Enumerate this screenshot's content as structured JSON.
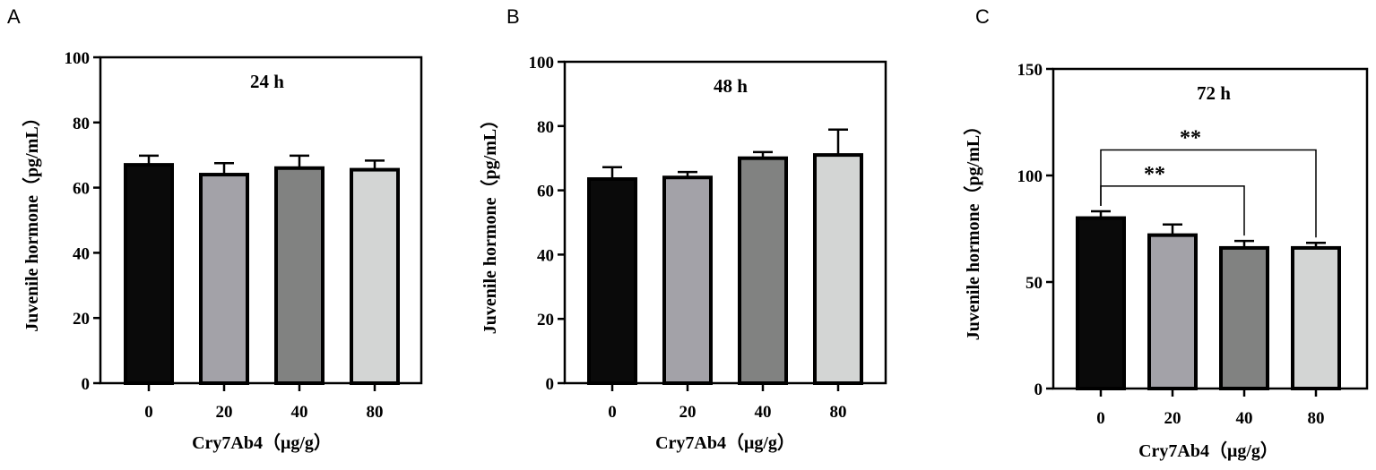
{
  "chart_data": [
    {
      "panel_label": "A",
      "type": "bar",
      "title": "24 h",
      "xlabel": "Cry7Ab4（μg/g）",
      "ylabel": "Juvenile hormone（pg/mL）",
      "categories": [
        "0",
        "20",
        "40",
        "80"
      ],
      "values": [
        67,
        64,
        66,
        65.5
      ],
      "errors": [
        2.8,
        3.5,
        3.8,
        2.8
      ],
      "bar_colors": [
        "#0a0a0a",
        "#a3a2a8",
        "#818281",
        "#d3d5d4"
      ],
      "ylim": [
        0,
        100
      ],
      "yticks": [
        0,
        20,
        40,
        60,
        80,
        100
      ],
      "significance": []
    },
    {
      "panel_label": "B",
      "type": "bar",
      "title": "48 h",
      "xlabel": "Cry7Ab4（μg/g）",
      "ylabel": "Juvenile hormone（pg/mL）",
      "categories": [
        "0",
        "20",
        "40",
        "80"
      ],
      "values": [
        63.5,
        64,
        70,
        71
      ],
      "errors": [
        3.7,
        1.7,
        1.9,
        7.9
      ],
      "bar_colors": [
        "#0a0a0a",
        "#a3a2a8",
        "#818281",
        "#d3d5d4"
      ],
      "ylim": [
        0,
        100
      ],
      "yticks": [
        0,
        20,
        40,
        60,
        80,
        100
      ],
      "significance": []
    },
    {
      "panel_label": "C",
      "type": "bar",
      "title": "72 h",
      "xlabel": "Cry7Ab4（μg/g）",
      "ylabel": "Juvenile hormone（pg/mL）",
      "categories": [
        "0",
        "20",
        "40",
        "80"
      ],
      "values": [
        80,
        72,
        66,
        66
      ],
      "errors": [
        3.2,
        5,
        3.3,
        2.4
      ],
      "bar_colors": [
        "#0a0a0a",
        "#a3a2a8",
        "#818281",
        "#d3d5d4"
      ],
      "ylim": [
        0,
        150
      ],
      "yticks": [
        0,
        50,
        100,
        150
      ],
      "significance": [
        {
          "from": "0",
          "to": "40",
          "label": "**",
          "y": 95
        },
        {
          "from": "0",
          "to": "80",
          "label": "**",
          "y": 112
        }
      ]
    }
  ]
}
